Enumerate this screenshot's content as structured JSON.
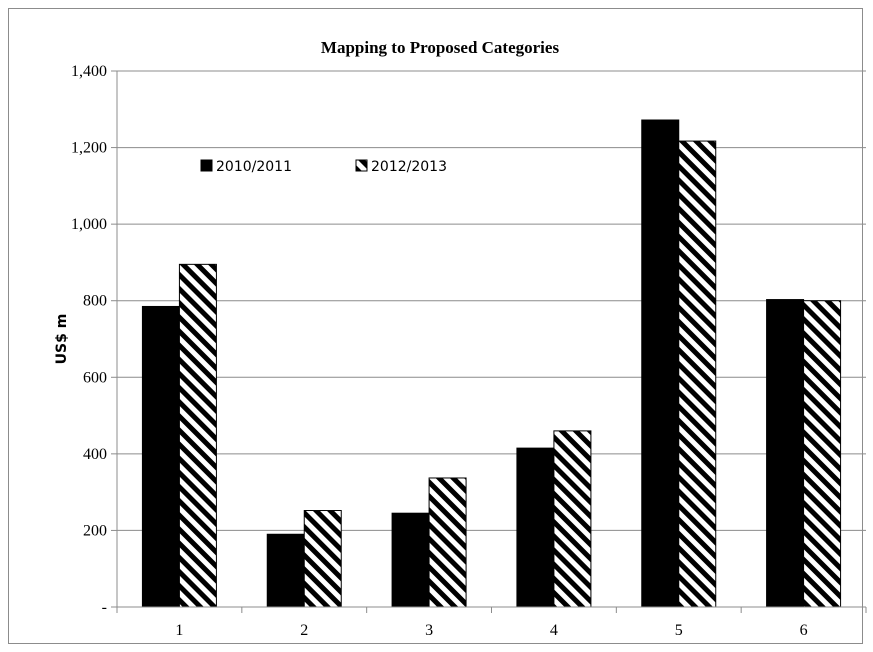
{
  "chart_data": {
    "type": "bar",
    "title": "Mapping to Proposed Categories",
    "ylabel": "US$ m",
    "xlabel": "",
    "categories": [
      "1",
      "2",
      "3",
      "4",
      "5",
      "6"
    ],
    "series": [
      {
        "name": "2010/2011",
        "values": [
          785,
          190,
          245,
          415,
          1272,
          803
        ],
        "color": "#000000",
        "pattern": "solid"
      },
      {
        "name": "2012/2013",
        "values": [
          895,
          252,
          337,
          460,
          1217,
          800
        ],
        "color": "#000000",
        "pattern": "diagonal-stripes"
      }
    ],
    "ylim": [
      0,
      1400
    ],
    "yticks": [
      0,
      200,
      400,
      600,
      800,
      1000,
      1200,
      1400
    ],
    "ytick_labels": [
      "-",
      "200",
      "400",
      "600",
      "800",
      "1,000",
      "1,200",
      "1,400"
    ],
    "grid": true,
    "legend_position": "top-left"
  }
}
